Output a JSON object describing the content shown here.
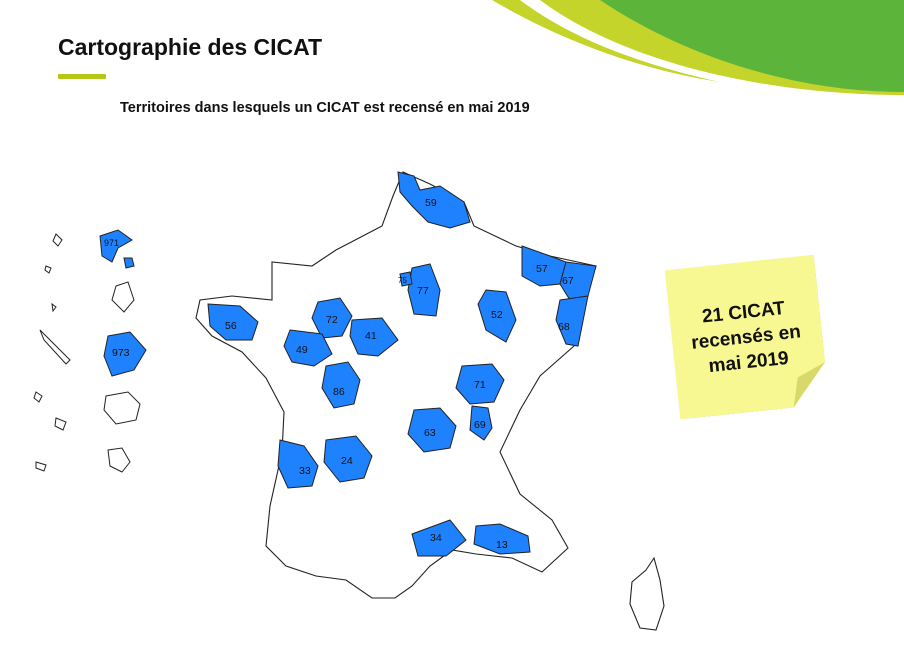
{
  "title": "Cartographie des CICAT",
  "subtitle": "Territoires dans lesquels un CICAT est recensé en mai 2019",
  "note": "21 CICAT recensés en mai 2019",
  "colors": {
    "highlight": "#1e82ff",
    "accent": "#b5c81a",
    "note": "#f7f891"
  },
  "departments": [
    {
      "code": "59"
    },
    {
      "code": "57"
    },
    {
      "code": "67"
    },
    {
      "code": "68"
    },
    {
      "code": "77"
    },
    {
      "code": "75"
    },
    {
      "code": "52"
    },
    {
      "code": "56"
    },
    {
      "code": "72"
    },
    {
      "code": "41"
    },
    {
      "code": "49"
    },
    {
      "code": "86"
    },
    {
      "code": "71"
    },
    {
      "code": "69"
    },
    {
      "code": "63"
    },
    {
      "code": "33"
    },
    {
      "code": "24"
    },
    {
      "code": "34"
    },
    {
      "code": "13"
    },
    {
      "code": "971"
    },
    {
      "code": "973"
    }
  ]
}
